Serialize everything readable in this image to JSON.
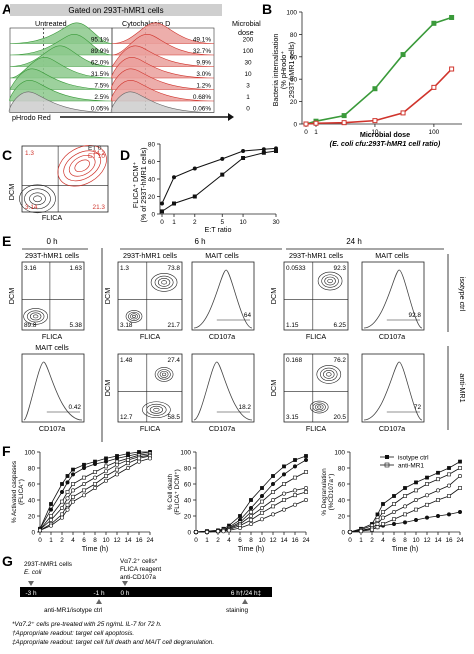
{
  "panel_letters": {
    "a": "A",
    "b": "B",
    "c": "C",
    "d": "D",
    "e": "E",
    "f": "F",
    "g": "G"
  },
  "A": {
    "gated_title": "Gated on 293T-hMR1 cells",
    "col_untreated": "Untreated",
    "col_cytochalasin": "Cytochalasin D",
    "microbial_dose_label": "Microbial\ndose",
    "microbial_label_l1": "Microbial",
    "microbial_label_l2": "dose",
    "x_label": "pHrodo Red",
    "untreated_pct": [
      "95.1%",
      "89.9%",
      "62.0%",
      "31.5%",
      "7.5%",
      "2.5%",
      "0.05%"
    ],
    "cyto_pct": [
      "49.1%",
      "32.7%",
      "9.9%",
      "3.0%",
      "1.2%",
      "0.68%",
      "0.06%"
    ],
    "doses": [
      "200",
      "100",
      "30",
      "10",
      "3",
      "1",
      "0"
    ]
  },
  "B": {
    "y_label_l1": "Bacteria internalisation",
    "y_label_l2": "(% pHrodo⁺",
    "y_label_l3": "293T-hMR1 cells)",
    "x_label_l1": "Microbial dose",
    "x_label_l2": "(E. coli cfu:293T-hMR1 cell ratio)",
    "y_ticks": [
      "0",
      "20",
      "40",
      "60",
      "80",
      "100"
    ],
    "x_ticks": [
      "0",
      "1",
      "10",
      "100"
    ]
  },
  "chart_data": [
    {
      "type": "line",
      "panel": "B",
      "x": [
        0,
        1,
        3,
        10,
        30,
        100,
        200
      ],
      "series": [
        {
          "values": [
            0,
            2.5,
            7.5,
            31.5,
            62.0,
            89.9,
            95.1
          ],
          "color": "#3a9a3a"
        },
        {
          "values": [
            0,
            0.68,
            1.2,
            3.0,
            9.9,
            32.7,
            49.1
          ],
          "color": "#d0342c"
        }
      ],
      "ylim": [
        0,
        100
      ],
      "xscale": "log"
    },
    {
      "type": "line",
      "panel": "D",
      "x": [
        0,
        1,
        2,
        5,
        10,
        20,
        30
      ],
      "series": [
        {
          "values": [
            12,
            42,
            52,
            63,
            72,
            74,
            75
          ],
          "marker": "circle"
        },
        {
          "values": [
            3,
            12,
            20,
            45,
            64,
            70,
            72
          ],
          "marker": "square"
        }
      ],
      "ylim": [
        0,
        80
      ],
      "xscale": "log",
      "xlabel": "E:T ratio",
      "ylabel": "FLICA⁺ DCM⁺ (% of 293T-hMR1 cells)"
    },
    {
      "type": "line",
      "panel": "F1",
      "x": [
        0,
        1,
        2,
        3,
        4,
        6,
        8,
        10,
        12,
        14,
        16,
        24
      ],
      "series": [
        {
          "values": [
            4,
            35,
            60,
            70,
            78,
            84,
            88,
            92,
            95,
            98,
            100,
            100
          ]
        },
        {
          "values": [
            4,
            28,
            50,
            62,
            72,
            80,
            85,
            88,
            92,
            95,
            98,
            100
          ]
        },
        {
          "values": [
            3,
            20,
            38,
            50,
            60,
            68,
            75,
            82,
            88,
            92,
            96,
            98
          ]
        },
        {
          "values": [
            3,
            15,
            30,
            42,
            52,
            60,
            68,
            76,
            84,
            90,
            94,
            96
          ]
        },
        {
          "values": [
            2,
            10,
            22,
            34,
            44,
            52,
            60,
            70,
            78,
            86,
            92,
            95
          ]
        },
        {
          "values": [
            2,
            8,
            18,
            28,
            38,
            46,
            55,
            64,
            72,
            80,
            88,
            92
          ]
        }
      ],
      "ylim": [
        0,
        100
      ],
      "ylabel": "% Activated caspases (FLICA⁺)",
      "xlabel": "Time (h)"
    },
    {
      "type": "line",
      "panel": "F2",
      "x": [
        0,
        1,
        2,
        3,
        4,
        6,
        8,
        10,
        12,
        14,
        16,
        24
      ],
      "series": [
        {
          "values": [
            0,
            1,
            2,
            4,
            8,
            20,
            40,
            55,
            70,
            82,
            90,
            95
          ]
        },
        {
          "values": [
            0,
            1,
            2,
            3,
            6,
            15,
            30,
            45,
            60,
            72,
            82,
            90
          ]
        },
        {
          "values": [
            0,
            1,
            1,
            3,
            5,
            12,
            25,
            38,
            50,
            60,
            68,
            75
          ]
        },
        {
          "values": [
            0,
            0,
            1,
            2,
            4,
            10,
            20,
            30,
            40,
            48,
            52,
            55
          ]
        },
        {
          "values": [
            0,
            0,
            1,
            2,
            3,
            8,
            15,
            24,
            32,
            40,
            46,
            50
          ]
        },
        {
          "values": [
            0,
            0,
            1,
            1,
            2,
            5,
            10,
            16,
            22,
            28,
            34,
            40
          ]
        }
      ],
      "ylim": [
        0,
        100
      ],
      "ylabel": "% Cell death (FLICA⁺ DCM⁺)",
      "xlabel": "Time (h)"
    },
    {
      "type": "line",
      "panel": "F3",
      "x": [
        0,
        1,
        2,
        3,
        4,
        6,
        8,
        10,
        12,
        14,
        16,
        24
      ],
      "series": [
        {
          "name": "isotype ctrl",
          "values": [
            0,
            4,
            10,
            22,
            35,
            45,
            55,
            62,
            68,
            74,
            80,
            88
          ]
        },
        {
          "name": "anti-MR1",
          "values": [
            0,
            2,
            4,
            6,
            8,
            10,
            12,
            15,
            18,
            20,
            22,
            25
          ]
        },
        {
          "values": [
            0,
            3,
            8,
            15,
            25,
            35,
            45,
            52,
            60,
            66,
            72,
            80
          ]
        },
        {
          "values": [
            0,
            2,
            5,
            10,
            18,
            25,
            32,
            40,
            46,
            52,
            58,
            70
          ]
        },
        {
          "values": [
            0,
            1,
            3,
            6,
            10,
            16,
            22,
            28,
            34,
            40,
            45,
            55
          ]
        }
      ],
      "ylim": [
        0,
        100
      ],
      "ylabel": "% Degranulation (%CD107a⁺)",
      "xlabel": "Time (h)"
    }
  ],
  "C": {
    "y_label": "DCM",
    "x_label": "FLICA",
    "legend_et0": "ET 0",
    "legend_et10": "ET 10",
    "q_tl_black": "1.3",
    "q_tr": "74.2",
    "q_bl": "3.14",
    "q_br": "21.3",
    "colors": {
      "et0": "#222222",
      "et10": "#d0342c"
    }
  },
  "D": {
    "y_label_l1": "FLICA⁺ DCM⁺",
    "y_label_l2": "(% of 293T-hMR1 cells)",
    "x_label": "E:T ratio",
    "y_ticks": [
      "0",
      "20",
      "40",
      "60",
      "80"
    ],
    "x_ticks": [
      "0",
      "1",
      "2",
      "5",
      "10",
      "30"
    ]
  },
  "E": {
    "h0": "0 h",
    "h6": "6 h",
    "h24": "24 h",
    "label_293t": "293T-hMR1 cells",
    "label_mait": "MAIT cells",
    "isotype": "isotype ctrl",
    "antimr1": "anti-MR1",
    "dcm": "DCM",
    "flica": "FLICA",
    "cd107a": "CD107a",
    "p0_tl": "3.16",
    "p0_tr": "1.63",
    "p0_bl": "89.8",
    "p0_br": "5.38",
    "p0_mait": "0.42",
    "r1_6_tl": "1.3",
    "r1_6_tr": "73.8",
    "r1_6_bl": "3.18",
    "r1_6_br": "21.7",
    "r1_6_mait": "64",
    "r1_24_tl": "0.0533",
    "r1_24_tr": "92.3",
    "r1_24_bl": "1.15",
    "r1_24_br": "6.25",
    "r1_24_mait": "92.8",
    "r2_6_tl": "1.48",
    "r2_6_tr": "27.4",
    "r2_6_bl": "12.7",
    "r2_6_br": "58.5",
    "r2_6_mait": "18.2",
    "r2_24_tl": "0.168",
    "r2_24_tr": "76.2",
    "r2_24_bl": "3.15",
    "r2_24_br": "20.5",
    "r2_24_mait": "72"
  },
  "F": {
    "y1": "% Activated caspases",
    "y1b": "(FLICA⁺)",
    "y2": "% Cell death",
    "y2b": "(FLICA⁺ DCM⁺)",
    "y3": "% Degranulation",
    "y3b": "(%CD107a⁺)",
    "x_label": "Time (h)",
    "y_ticks": [
      "0",
      "20",
      "40",
      "60",
      "80",
      "100"
    ],
    "x_ticks": [
      "0",
      "1",
      "2",
      "4",
      "6",
      "8",
      "10",
      "12",
      "14",
      "16",
      "24"
    ],
    "legend_iso": "isotype ctrl",
    "legend_mr1": "anti-MR1"
  },
  "G": {
    "top_left_l1": "293T-hMR1 cells",
    "top_left_l2": "E. coli",
    "top_mid_l1": "Vα7.2⁺ cells*",
    "top_mid_l2": "FLICA reagent",
    "top_mid_l3": "anti-CD107a",
    "t_m3": "-3 h",
    "t_m1": "-1 h",
    "t_0": "0 h",
    "t_end": "6 h†/24 h‡",
    "below_1": "anti-MR1/isotype ctrl",
    "below_2": "staining",
    "fn1": "*Vα7.2⁺ cells pre-treated with 25 ng/mL IL-7 for 72 h.",
    "fn2": "†Appropriate readout: target cell apoptosis.",
    "fn3": "‡Appropriate readout: target cell full death and MAIT cell degranulation."
  }
}
